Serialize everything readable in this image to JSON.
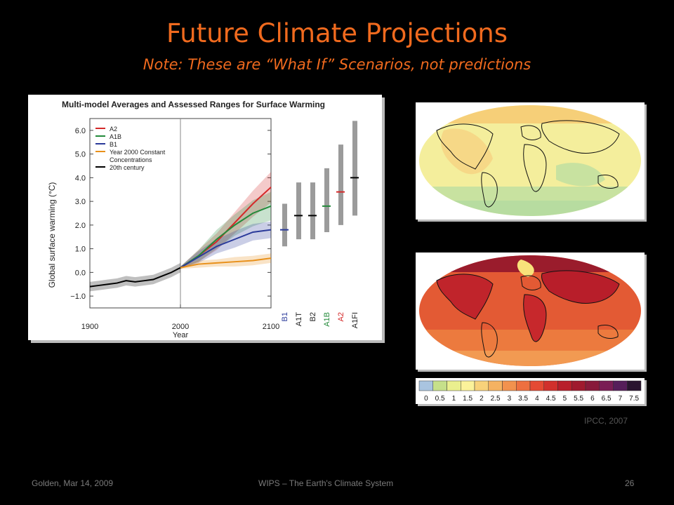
{
  "slide": {
    "title": "Future Climate Projections",
    "subtitle": "Note: These are “What If” Scenarios, not predictions",
    "credit": "IPCC, 2007",
    "footer_left": "Golden,  Mar 14, 2009",
    "footer_center": "WIPS – The Earth's Climate System",
    "footer_right": "26"
  },
  "chart_data": {
    "type": "line",
    "title": "Multi-model Averages and Assessed Ranges for Surface Warming",
    "xlabel": "Year",
    "ylabel": "Global surface warming (°C)",
    "xlim": [
      1900,
      2100
    ],
    "ylim": [
      -1.5,
      6.5
    ],
    "xticks": [
      1900,
      2000,
      2100
    ],
    "yticks": [
      -1.0,
      0.0,
      1.0,
      2.0,
      3.0,
      4.0,
      5.0,
      6.0
    ],
    "ytick_labels": [
      "−1.0",
      "0.0",
      "1.0",
      "2.0",
      "3.0",
      "4.0",
      "5.0",
      "6.0"
    ],
    "legend": [
      "A2",
      "A1B",
      "B1",
      "Year 2000 Constant\nConcentrations",
      "20th century"
    ],
    "legend_position": "top-left",
    "series": [
      {
        "name": "20th century",
        "color": "#000000",
        "x": [
          1900,
          1910,
          1920,
          1930,
          1940,
          1950,
          1960,
          1970,
          1980,
          1990,
          2000
        ],
        "y": [
          -0.6,
          -0.55,
          -0.5,
          -0.45,
          -0.35,
          -0.4,
          -0.35,
          -0.3,
          -0.15,
          0.0,
          0.2
        ],
        "band": [
          0.2,
          0.2,
          0.2,
          0.2,
          0.2,
          0.2,
          0.2,
          0.2,
          0.2,
          0.2,
          0.2
        ]
      },
      {
        "name": "A2",
        "color": "#d42a2a",
        "x": [
          2000,
          2020,
          2040,
          2060,
          2080,
          2100
        ],
        "y": [
          0.2,
          0.7,
          1.3,
          2.1,
          2.9,
          3.6
        ],
        "band": [
          0.05,
          0.25,
          0.35,
          0.45,
          0.55,
          0.65
        ]
      },
      {
        "name": "A1B",
        "color": "#238a3a",
        "x": [
          2000,
          2020,
          2040,
          2060,
          2080,
          2100
        ],
        "y": [
          0.2,
          0.7,
          1.4,
          2.0,
          2.5,
          2.8
        ],
        "band": [
          0.05,
          0.25,
          0.4,
          0.45,
          0.55,
          0.6
        ]
      },
      {
        "name": "B1",
        "color": "#2a3a9a",
        "x": [
          2000,
          2020,
          2040,
          2060,
          2080,
          2100
        ],
        "y": [
          0.2,
          0.65,
          1.1,
          1.4,
          1.7,
          1.8
        ],
        "band": [
          0.05,
          0.25,
          0.3,
          0.35,
          0.35,
          0.35
        ]
      },
      {
        "name": "Year 2000 Constant Concentrations",
        "color": "#e8901a",
        "x": [
          2000,
          2020,
          2040,
          2060,
          2080,
          2100
        ],
        "y": [
          0.2,
          0.35,
          0.4,
          0.45,
          0.5,
          0.6
        ],
        "band": [
          0.05,
          0.15,
          0.15,
          0.2,
          0.2,
          0.2
        ]
      }
    ],
    "ranges": [
      {
        "label": "B1",
        "low": 1.1,
        "high": 2.9,
        "best": 1.8,
        "color": "#2a3a9a"
      },
      {
        "label": "A1T",
        "low": 1.4,
        "high": 3.8,
        "best": 2.4,
        "color": "#000000"
      },
      {
        "label": "B2",
        "low": 1.4,
        "high": 3.8,
        "best": 2.4,
        "color": "#000000"
      },
      {
        "label": "A1B",
        "low": 1.7,
        "high": 4.4,
        "best": 2.8,
        "color": "#238a3a"
      },
      {
        "label": "A2",
        "low": 2.0,
        "high": 5.4,
        "best": 3.4,
        "color": "#d42a2a"
      },
      {
        "label": "A1FI",
        "low": 2.4,
        "high": 6.4,
        "best": 4.0,
        "color": "#000000"
      }
    ]
  },
  "colorbar": {
    "labels": [
      "0",
      "0.5",
      "1",
      "1.5",
      "2",
      "2.5",
      "3",
      "3.5",
      "4",
      "4.5",
      "5",
      "5.5",
      "6",
      "6.5",
      "7",
      "7.5"
    ],
    "colors": [
      "#a9c4e0",
      "#c6e08a",
      "#eaef8e",
      "#fbf29a",
      "#f8d27a",
      "#f5b262",
      "#f2924e",
      "#ee7040",
      "#e54a33",
      "#d1302c",
      "#b81e2a",
      "#a01a2e",
      "#881a3a",
      "#7a1d55",
      "#561e5a",
      "#2a1530"
    ]
  }
}
